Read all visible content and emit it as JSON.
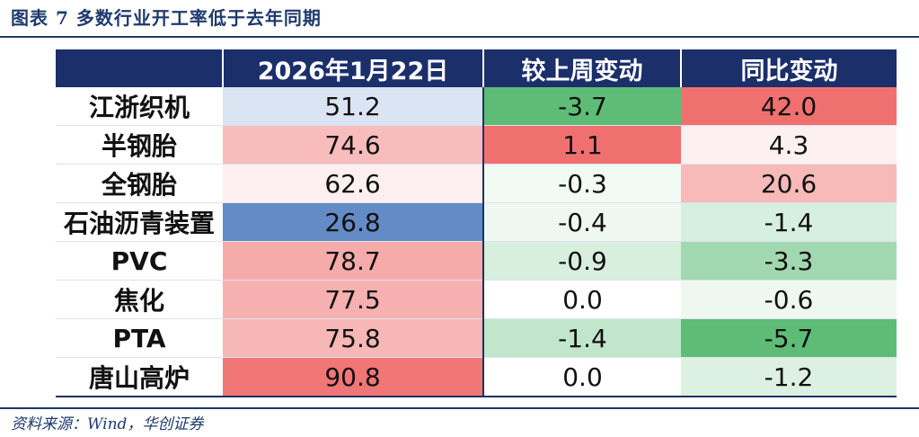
{
  "figure_title": "图表 7   多数行业开工率低于去年同期",
  "source": "资料来源：Wind，华创证券",
  "colors": {
    "header_bg": "#1b2f6b",
    "positive_strong": "#f07070",
    "negative_strong": "#5ebc77",
    "level_low_blue": "#5b86c4"
  },
  "chart_data": {
    "type": "table",
    "title": "图表 7   多数行业开工率低于去年同期",
    "columns": [
      "",
      "2026年1月22日",
      "较上周变动",
      "同比变动"
    ],
    "rows": [
      {
        "label": "江浙织机",
        "values": [
          "51.2",
          "-3.7",
          "42.0"
        ]
      },
      {
        "label": "半钢胎",
        "values": [
          "74.6",
          "1.1",
          "4.3"
        ]
      },
      {
        "label": "全钢胎",
        "values": [
          "62.6",
          "-0.3",
          "20.6"
        ]
      },
      {
        "label": "石油沥青装置",
        "values": [
          "26.8",
          "-0.4",
          "-1.4"
        ]
      },
      {
        "label": "PVC",
        "values": [
          "78.7",
          "-0.9",
          "-3.3"
        ]
      },
      {
        "label": "焦化",
        "values": [
          "77.5",
          "0.0",
          "-0.6"
        ]
      },
      {
        "label": "PTA",
        "values": [
          "75.8",
          "-1.4",
          "-5.7"
        ]
      },
      {
        "label": "唐山高炉",
        "values": [
          "90.8",
          "0.0",
          "-1.2"
        ]
      }
    ]
  }
}
